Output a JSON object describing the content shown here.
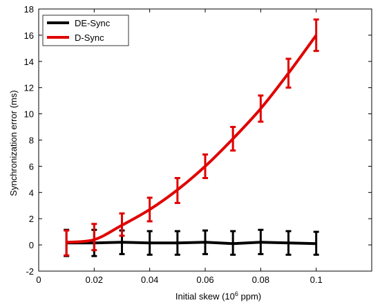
{
  "chart_data": {
    "type": "line",
    "title": "",
    "xlabel": "Initial skew (10",
    "xlabel_sup": "6",
    "xlabel_tail": " ppm)",
    "ylabel": "Synchronization error (ms)",
    "xlim": [
      0,
      0.12
    ],
    "ylim": [
      -2,
      18
    ],
    "xticks": [
      0,
      0.02,
      0.04,
      0.06,
      0.08,
      0.1
    ],
    "xtick_labels": [
      "0",
      "0.02",
      "0.04",
      "0.06",
      "0.08",
      "0.1"
    ],
    "yticks": [
      -2,
      0,
      2,
      4,
      6,
      8,
      10,
      12,
      14,
      16,
      18
    ],
    "ytick_labels": [
      "-2",
      "0",
      "2",
      "4",
      "6",
      "8",
      "10",
      "12",
      "14",
      "16",
      "18"
    ],
    "grid": false,
    "legend_position": "top-left",
    "x": [
      0.01,
      0.02,
      0.03,
      0.04,
      0.05,
      0.06,
      0.07,
      0.08,
      0.09,
      0.1
    ],
    "series": [
      {
        "name": "DE-Sync",
        "color": "#000000",
        "values": [
          0.15,
          0.15,
          0.2,
          0.15,
          0.15,
          0.2,
          0.1,
          0.2,
          0.15,
          0.1
        ],
        "err_low": [
          1.0,
          1.0,
          0.9,
          0.9,
          0.9,
          0.9,
          0.85,
          0.9,
          0.9,
          0.85
        ],
        "err_high": [
          1.0,
          1.0,
          0.9,
          0.9,
          0.9,
          0.9,
          0.95,
          0.95,
          0.9,
          0.9
        ]
      },
      {
        "name": "D-Sync",
        "color": "#e00000",
        "values": [
          0.2,
          0.4,
          1.5,
          2.7,
          4.2,
          6.0,
          8.1,
          10.4,
          13.1,
          16.0
        ],
        "err_low": [
          1.0,
          0.8,
          0.8,
          0.9,
          1.0,
          0.9,
          0.9,
          1.0,
          1.1,
          1.2
        ],
        "err_high": [
          0.9,
          1.2,
          0.9,
          0.9,
          0.9,
          0.9,
          0.9,
          1.0,
          1.1,
          1.2
        ]
      }
    ]
  }
}
